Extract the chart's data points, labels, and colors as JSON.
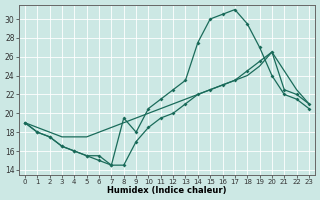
{
  "xlabel": "Humidex (Indice chaleur)",
  "xlim": [
    -0.5,
    23.5
  ],
  "ylim": [
    13.5,
    31.5
  ],
  "yticks": [
    14,
    16,
    18,
    20,
    22,
    24,
    26,
    28,
    30
  ],
  "xticks": [
    0,
    1,
    2,
    3,
    4,
    5,
    6,
    7,
    8,
    9,
    10,
    11,
    12,
    13,
    14,
    15,
    16,
    17,
    18,
    19,
    20,
    21,
    22,
    23
  ],
  "bg_color": "#cce8e4",
  "line_color": "#1a6b5a",
  "grid_color": "#ffffff",
  "line1_x": [
    0,
    1,
    2,
    3,
    4,
    5,
    6,
    7,
    8,
    9,
    10,
    11,
    12,
    13,
    14,
    15,
    16,
    17,
    18,
    19,
    20,
    21,
    22,
    23
  ],
  "line1_y": [
    19.0,
    18.0,
    17.5,
    16.5,
    16.0,
    15.5,
    15.0,
    14.5,
    19.5,
    18.0,
    20.5,
    21.5,
    22.5,
    23.5,
    27.5,
    30.0,
    30.5,
    31.0,
    29.5,
    27.0,
    24.0,
    22.0,
    21.5,
    20.5
  ],
  "line2_x": [
    0,
    1,
    2,
    3,
    4,
    5,
    6,
    7,
    8,
    9,
    10,
    11,
    12,
    13,
    14,
    15,
    16,
    17,
    18,
    19,
    20,
    21,
    22,
    23
  ],
  "line2_y": [
    19.0,
    18.5,
    18.0,
    17.5,
    17.5,
    17.5,
    18.0,
    18.5,
    19.0,
    19.5,
    20.0,
    20.5,
    21.0,
    21.5,
    22.0,
    22.5,
    23.0,
    23.5,
    24.0,
    25.0,
    26.5,
    24.5,
    22.5,
    21.0
  ],
  "line3_x": [
    0,
    1,
    2,
    3,
    4,
    5,
    6,
    7,
    8,
    9,
    10,
    11,
    12,
    13,
    14,
    15,
    16,
    17,
    18,
    19,
    20,
    21,
    22,
    23
  ],
  "line3_y": [
    19.0,
    18.0,
    17.5,
    16.5,
    16.0,
    15.5,
    15.5,
    14.5,
    14.5,
    17.0,
    18.5,
    19.5,
    20.0,
    21.0,
    22.0,
    22.5,
    23.0,
    23.5,
    24.5,
    25.5,
    26.5,
    22.5,
    22.0,
    21.0
  ]
}
